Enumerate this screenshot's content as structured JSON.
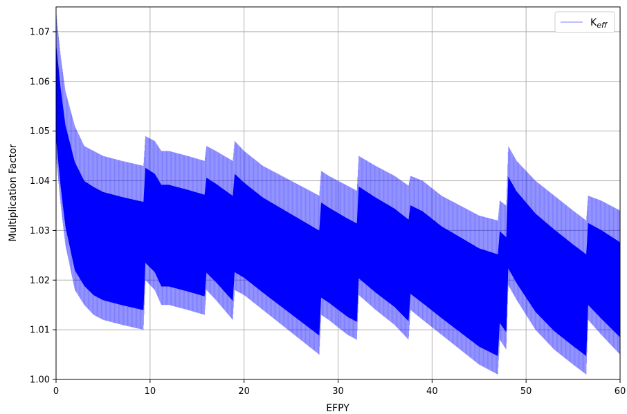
{
  "chart_data": {
    "type": "line",
    "title": "",
    "xlabel": "EFPY",
    "ylabel": "Multiplication Factor",
    "xlim": [
      0,
      60
    ],
    "ylim": [
      1.0,
      1.075
    ],
    "xticks": [
      "0",
      "10",
      "20",
      "30",
      "40",
      "50",
      "60"
    ],
    "yticks": [
      "1.00",
      "1.01",
      "1.02",
      "1.03",
      "1.04",
      "1.05",
      "1.06",
      "1.07"
    ],
    "grid": true,
    "legend_position": "top-right",
    "series": [
      {
        "name": "K",
        "name_subscript": "eff",
        "color": "#0000ff",
        "style": "oscillating thin line, approximate upper and lower envelope (data units)",
        "x": [
          0,
          0.5,
          1,
          2,
          3,
          4,
          5,
          7,
          9.3,
          9.5,
          10.5,
          11.2,
          12,
          14,
          15.8,
          16,
          17,
          18.8,
          19,
          20,
          22,
          24,
          26,
          28,
          28.2,
          29,
          31,
          32,
          32.2,
          34,
          36,
          37.5,
          37.7,
          39,
          41,
          43,
          45,
          47,
          47.2,
          47.9,
          48.1,
          49,
          51,
          53,
          55,
          56.4,
          56.6,
          58,
          60
        ],
        "upper": [
          1.074,
          1.065,
          1.058,
          1.051,
          1.047,
          1.046,
          1.045,
          1.044,
          1.043,
          1.049,
          1.048,
          1.046,
          1.046,
          1.045,
          1.044,
          1.047,
          1.046,
          1.044,
          1.048,
          1.046,
          1.043,
          1.041,
          1.039,
          1.037,
          1.042,
          1.041,
          1.039,
          1.038,
          1.045,
          1.043,
          1.041,
          1.039,
          1.041,
          1.04,
          1.037,
          1.035,
          1.033,
          1.032,
          1.036,
          1.035,
          1.047,
          1.044,
          1.04,
          1.037,
          1.034,
          1.032,
          1.037,
          1.036,
          1.034
        ],
        "lower": [
          1.045,
          1.035,
          1.027,
          1.018,
          1.015,
          1.013,
          1.012,
          1.011,
          1.01,
          1.02,
          1.018,
          1.015,
          1.015,
          1.014,
          1.013,
          1.018,
          1.016,
          1.012,
          1.018,
          1.017,
          1.014,
          1.011,
          1.008,
          1.005,
          1.013,
          1.012,
          1.009,
          1.008,
          1.017,
          1.014,
          1.011,
          1.008,
          1.014,
          1.012,
          1.009,
          1.006,
          1.003,
          1.001,
          1.008,
          1.006,
          1.019,
          1.016,
          1.01,
          1.006,
          1.003,
          1.001,
          1.012,
          1.009,
          1.005
        ]
      }
    ]
  }
}
